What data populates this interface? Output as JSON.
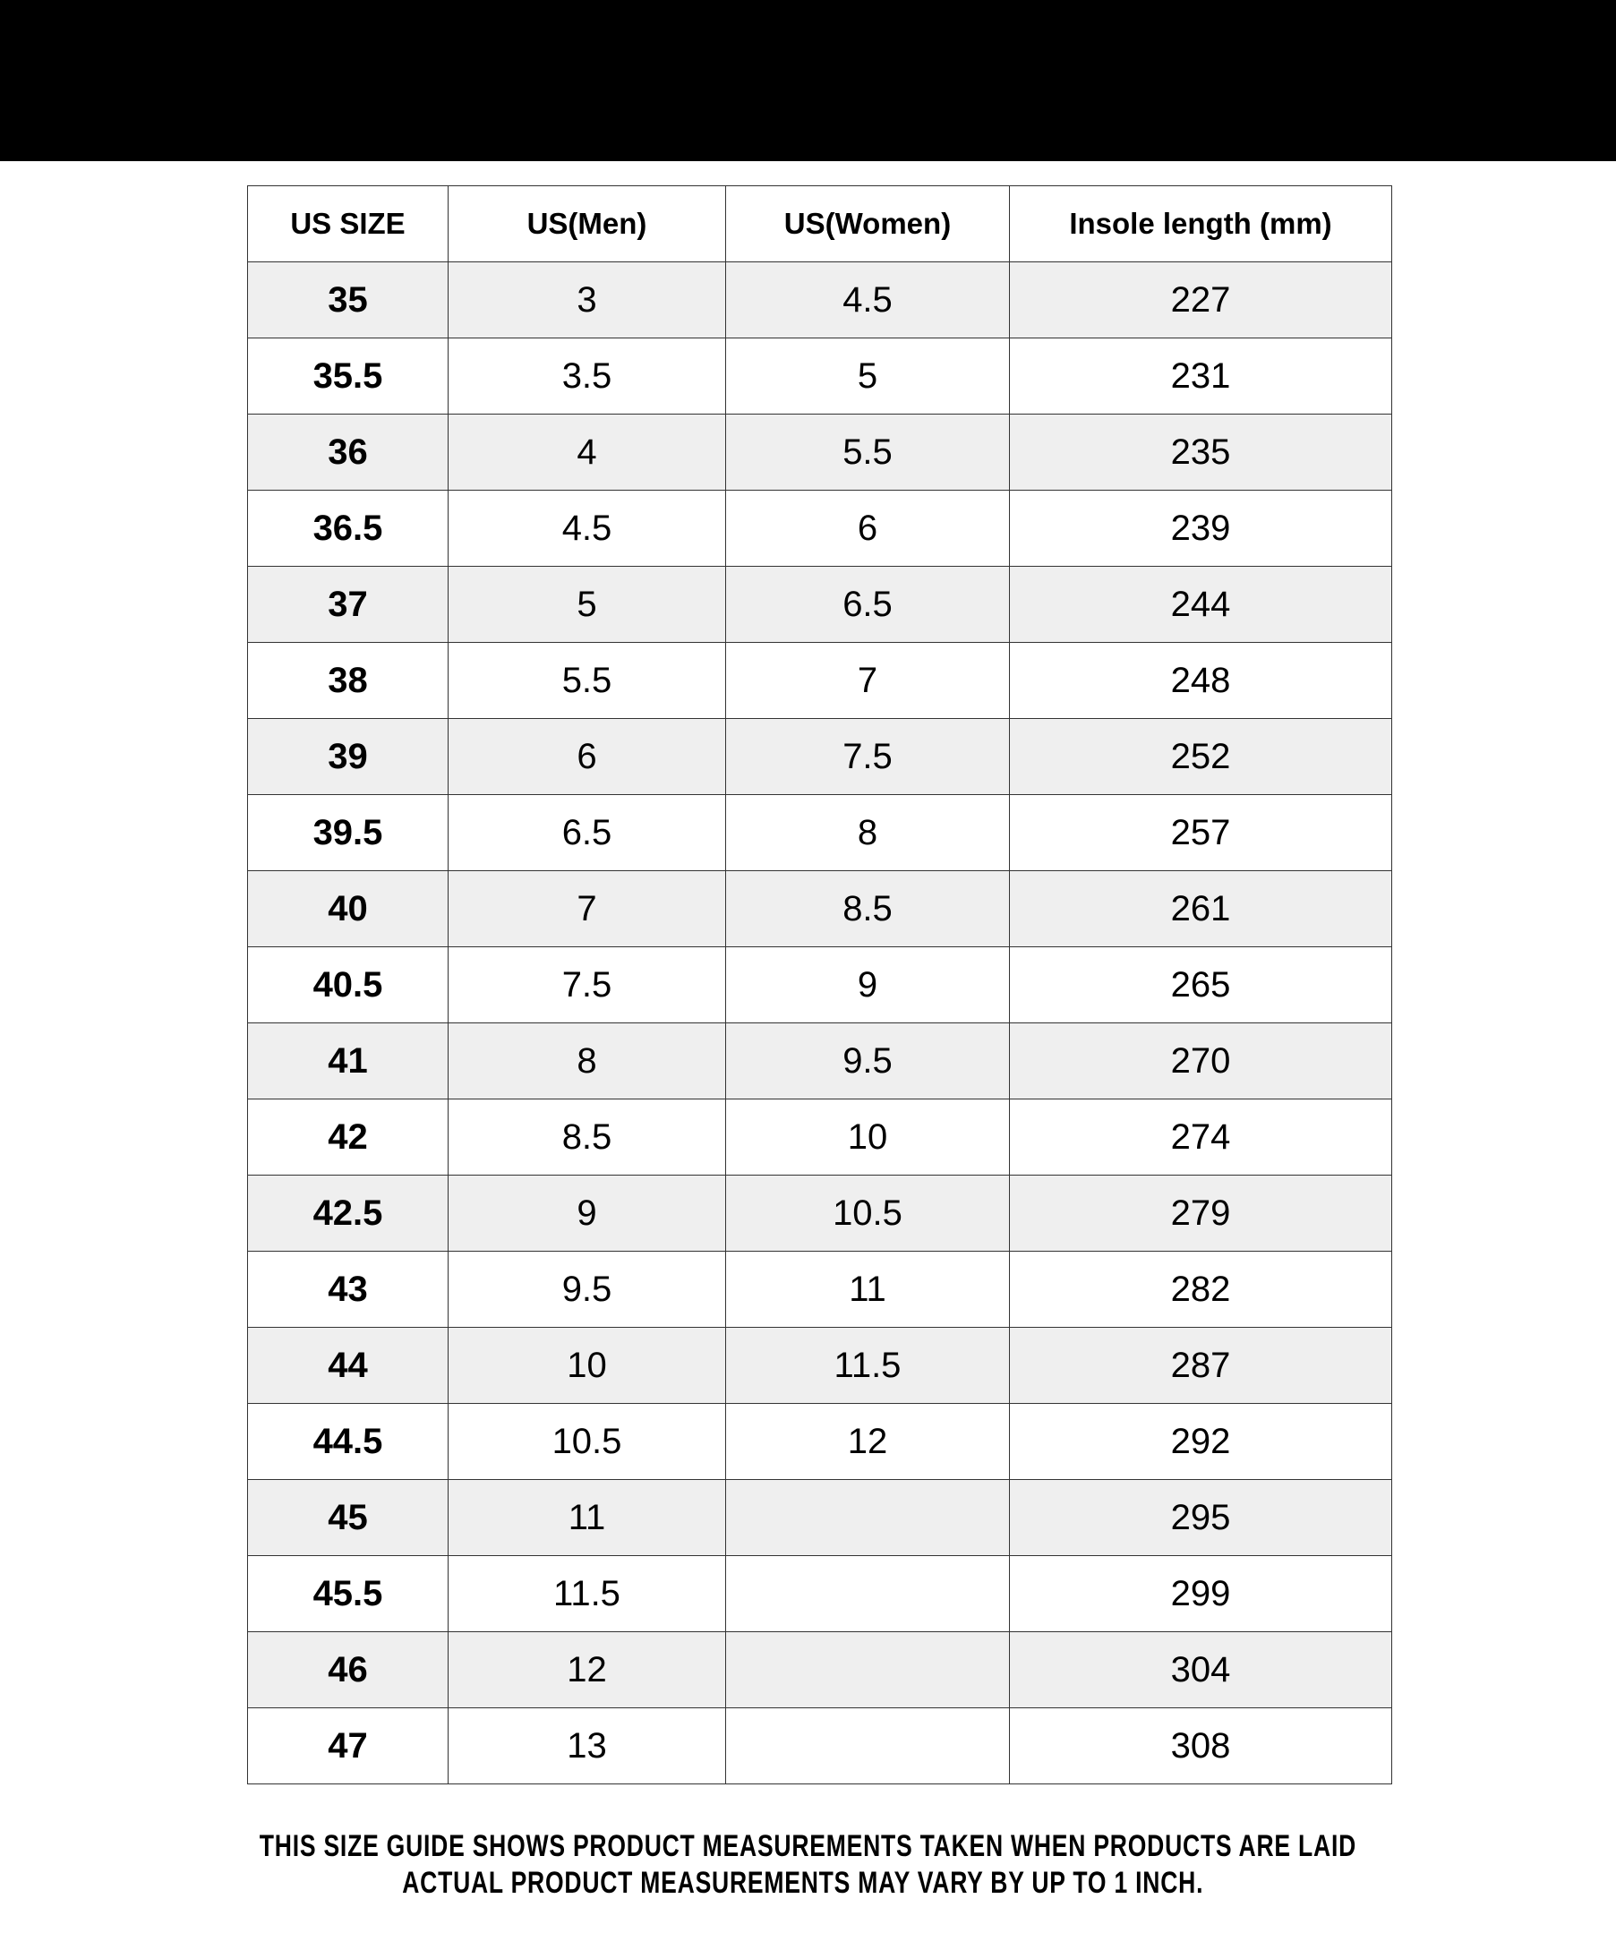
{
  "table": {
    "headers": [
      "US SIZE",
      "US(Men)",
      "US(Women)",
      "Insole length (mm)"
    ],
    "rows": [
      [
        "35",
        "3",
        "4.5",
        "227"
      ],
      [
        "35.5",
        "3.5",
        "5",
        "231"
      ],
      [
        "36",
        "4",
        "5.5",
        "235"
      ],
      [
        "36.5",
        "4.5",
        "6",
        "239"
      ],
      [
        "37",
        "5",
        "6.5",
        "244"
      ],
      [
        "38",
        "5.5",
        "7",
        "248"
      ],
      [
        "39",
        "6",
        "7.5",
        "252"
      ],
      [
        "39.5",
        "6.5",
        "8",
        "257"
      ],
      [
        "40",
        "7",
        "8.5",
        "261"
      ],
      [
        "40.5",
        "7.5",
        "9",
        "265"
      ],
      [
        "41",
        "8",
        "9.5",
        "270"
      ],
      [
        "42",
        "8.5",
        "10",
        "274"
      ],
      [
        "42.5",
        "9",
        "10.5",
        "279"
      ],
      [
        "43",
        "9.5",
        "11",
        "282"
      ],
      [
        "44",
        "10",
        "11.5",
        "287"
      ],
      [
        "44.5",
        "10.5",
        "12",
        "292"
      ],
      [
        "45",
        "11",
        "",
        "295"
      ],
      [
        "45.5",
        "11.5",
        "",
        "299"
      ],
      [
        "46",
        "12",
        "",
        "304"
      ],
      [
        "47",
        "13",
        "",
        "308"
      ]
    ]
  },
  "footer": {
    "line1": "THIS SIZE GUIDE SHOWS PRODUCT MEASUREMENTS TAKEN WHEN PRODUCTS ARE LAID",
    "line2": "ACTUAL PRODUCT MEASUREMENTS MAY VARY BY UP TO 1 INCH."
  },
  "colors": {
    "top_bar": "#000000",
    "alt_row": "#efefef"
  }
}
